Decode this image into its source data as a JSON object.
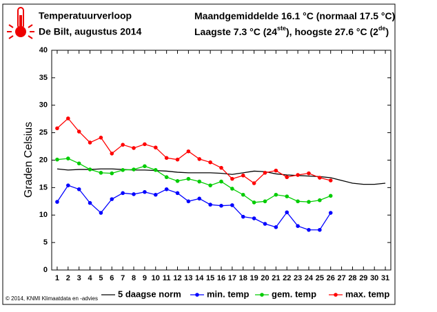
{
  "chart_data": {
    "type": "line",
    "title": "Temperatuurverloop",
    "subtitle": "De Bilt, augustus 2014",
    "annotations": [
      [
        "Maandgemiddelde 16.1 °C (normaal 17.5 °C)"
      ],
      [
        "Laagste 7.3 °C (24",
        "ste",
        "), hoogste 27.6 °C (2",
        "de",
        ")"
      ]
    ],
    "ylabel": "Graden Celsius",
    "footer": "© 2014, KNMI Klimaatdata en -advies",
    "x": [
      1,
      2,
      3,
      4,
      5,
      6,
      7,
      8,
      9,
      10,
      11,
      12,
      13,
      14,
      15,
      16,
      17,
      18,
      19,
      20,
      21,
      22,
      23,
      24,
      25,
      26,
      27,
      28,
      29,
      30,
      31
    ],
    "xlim": [
      0.5,
      31.5
    ],
    "xticks": [
      1,
      2,
      3,
      4,
      5,
      6,
      7,
      8,
      9,
      10,
      11,
      12,
      13,
      14,
      15,
      16,
      17,
      18,
      19,
      20,
      21,
      22,
      23,
      24,
      25,
      26,
      27,
      28,
      29,
      30,
      31
    ],
    "ylim": [
      0,
      40
    ],
    "yticks": [
      0,
      5,
      10,
      15,
      20,
      25,
      30,
      35,
      40
    ],
    "series": [
      {
        "name": "5 daagse norm",
        "color": "#000000",
        "marker": false,
        "values": [
          18.4,
          18.2,
          18.3,
          18.3,
          18.4,
          18.4,
          18.3,
          18.2,
          18.2,
          18.1,
          18.0,
          17.8,
          17.7,
          17.7,
          17.7,
          17.6,
          17.4,
          17.7,
          18.0,
          17.9,
          17.5,
          17.3,
          17.2,
          17.1,
          17.0,
          16.8,
          16.3,
          15.8,
          15.6,
          15.6,
          15.8
        ]
      },
      {
        "name": "min. temp",
        "color": "#0000ff",
        "marker": true,
        "values": [
          12.4,
          15.4,
          14.7,
          12.2,
          10.4,
          12.9,
          14.0,
          13.8,
          14.2,
          13.7,
          14.7,
          14.0,
          12.5,
          13.0,
          11.9,
          11.7,
          11.8,
          9.7,
          9.4,
          8.4,
          7.8,
          10.5,
          8.0,
          7.3,
          7.3,
          10.4,
          null,
          null,
          null,
          null,
          null
        ]
      },
      {
        "name": "gem. temp",
        "color": "#00cc00",
        "marker": true,
        "values": [
          20.1,
          20.3,
          19.4,
          18.3,
          17.7,
          17.6,
          18.2,
          18.3,
          18.9,
          18.2,
          16.9,
          16.2,
          16.6,
          16.1,
          15.4,
          16.1,
          14.8,
          13.7,
          12.3,
          12.5,
          13.7,
          13.4,
          12.5,
          12.4,
          12.7,
          13.5,
          null,
          null,
          null,
          null,
          null
        ]
      },
      {
        "name": "max. temp",
        "color": "#ff0000",
        "marker": true,
        "values": [
          25.8,
          27.6,
          25.2,
          23.2,
          24.1,
          21.2,
          22.8,
          22.2,
          22.9,
          22.3,
          20.4,
          20.1,
          21.6,
          20.2,
          19.6,
          18.6,
          16.6,
          17.2,
          15.8,
          17.7,
          18.1,
          16.9,
          17.3,
          17.6,
          16.8,
          16.3,
          null,
          null,
          null,
          null,
          null
        ]
      }
    ]
  }
}
